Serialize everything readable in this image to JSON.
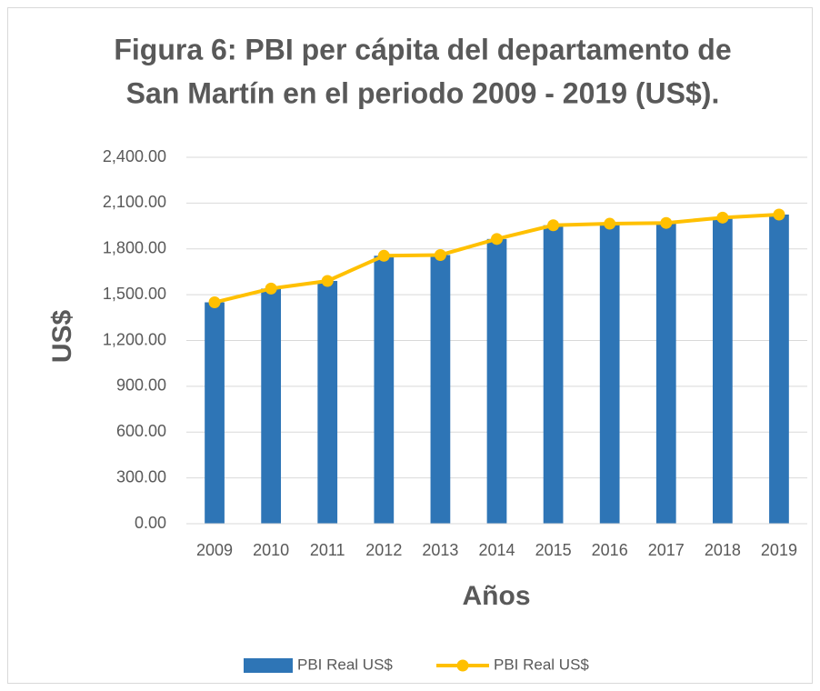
{
  "chart_data": {
    "type": "bar",
    "title": [
      "Figura 6: PBI per cápita del departamento de",
      "San Martín en el periodo 2009 - 2019 (US$)."
    ],
    "x_label": "Años",
    "y_label": "US$",
    "categories": [
      "2009",
      "2010",
      "2011",
      "2012",
      "2013",
      "2014",
      "2015",
      "2016",
      "2017",
      "2018",
      "2019"
    ],
    "series": [
      {
        "name": "PBI Real US$",
        "type": "bar",
        "color": "#2e75b6",
        "values": [
          1450,
          1540,
          1590,
          1755,
          1760,
          1865,
          1955,
          1965,
          1970,
          2005,
          2025
        ]
      },
      {
        "name": "PBI Real US$",
        "type": "line",
        "color": "#ffc000",
        "values": [
          1450,
          1540,
          1590,
          1755,
          1760,
          1865,
          1955,
          1965,
          1970,
          2005,
          2025
        ]
      }
    ],
    "ylim": [
      0,
      2400
    ],
    "yticks": [
      {
        "value": 0,
        "label": "0.00"
      },
      {
        "value": 300,
        "label": "300.00"
      },
      {
        "value": 600,
        "label": "600.00"
      },
      {
        "value": 900,
        "label": "900.00"
      },
      {
        "value": 1200,
        "label": "1,200.00"
      },
      {
        "value": 1500,
        "label": "1,500.00"
      },
      {
        "value": 1800,
        "label": "1,800.00"
      },
      {
        "value": 2100,
        "label": "2,100.00"
      },
      {
        "value": 2400,
        "label": "2,400.00"
      }
    ],
    "grid": true,
    "legend": "bottom"
  }
}
